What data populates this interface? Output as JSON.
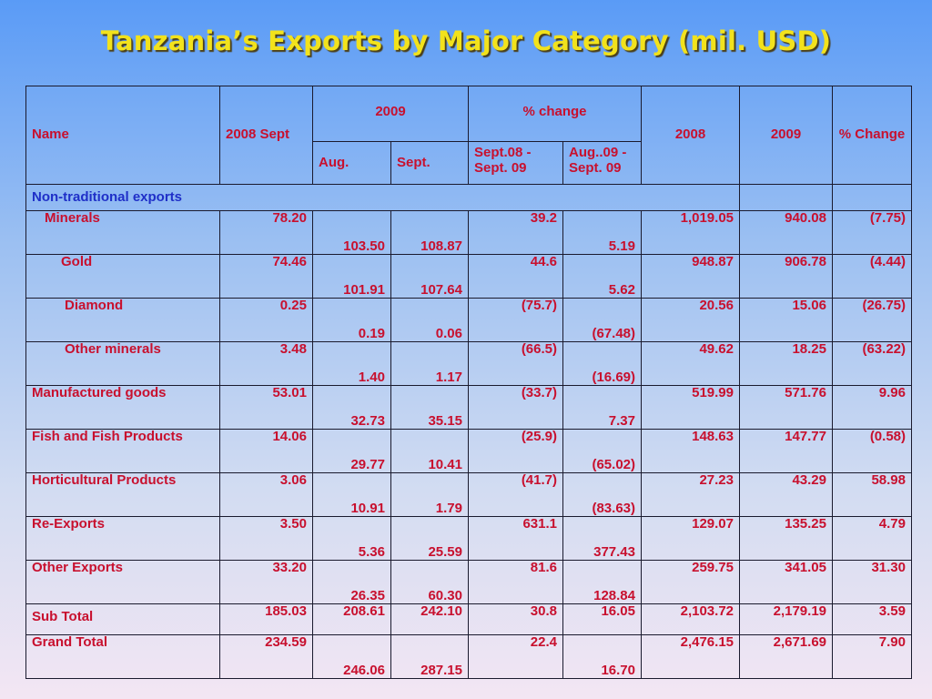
{
  "title": "Tanzania’s Exports by Major Category (mil. USD)",
  "headers": {
    "name": "Name",
    "sept_2008": "2008 Sept",
    "group_2009": "2009",
    "group_pct": "% change",
    "y2008": "2008",
    "y2009": "2009",
    "pct_change": "% Change",
    "aug": "Aug.",
    "sept": "Sept.",
    "sept08_sept09": "Sept.08 - Sept. 09",
    "aug09_sept09": "Aug..09 - Sept. 09"
  },
  "section_label": "Non-traditional exports",
  "rows": [
    {
      "name": "Minerals",
      "sept2008": "78.20",
      "aug2009": "103.50",
      "sept2009": "108.87",
      "chg_sept": "39.2",
      "chg_aug": "5.19",
      "y2008": "1,019.05",
      "y2009": "940.08",
      "pct": "(7.75)"
    },
    {
      "name": "Gold",
      "sept2008": "74.46",
      "aug2009": "101.91",
      "sept2009": "107.64",
      "chg_sept": "44.6",
      "chg_aug": "5.62",
      "y2008": "948.87",
      "y2009": "906.78",
      "pct": "(4.44)"
    },
    {
      "name": "Diamond",
      "sept2008": "0.25",
      "aug2009": "0.19",
      "sept2009": "0.06",
      "chg_sept": "(75.7)",
      "chg_aug": "(67.48)",
      "y2008": "20.56",
      "y2009": "15.06",
      "pct": "(26.75)"
    },
    {
      "name": "Other minerals",
      "sept2008": "3.48",
      "aug2009": "1.40",
      "sept2009": "1.17",
      "chg_sept": "(66.5)",
      "chg_aug": "(16.69)",
      "y2008": "49.62",
      "y2009": "18.25",
      "pct": "(63.22)"
    },
    {
      "name": "Manufactured goods",
      "sept2008": "53.01",
      "aug2009": "32.73",
      "sept2009": "35.15",
      "chg_sept": "(33.7)",
      "chg_aug": "7.37",
      "y2008": "519.99",
      "y2009": "571.76",
      "pct": "9.96"
    },
    {
      "name": "Fish and Fish Products",
      "sept2008": "14.06",
      "aug2009": "29.77",
      "sept2009": "10.41",
      "chg_sept": "(25.9)",
      "chg_aug": "(65.02)",
      "y2008": "148.63",
      "y2009": "147.77",
      "pct": "(0.58)"
    },
    {
      "name": "Horticultural Products",
      "sept2008": "3.06",
      "aug2009": "10.91",
      "sept2009": "1.79",
      "chg_sept": "(41.7)",
      "chg_aug": "(83.63)",
      "y2008": "27.23",
      "y2009": "43.29",
      "pct": "58.98"
    },
    {
      "name": "Re-Exports",
      "sept2008": "3.50",
      "aug2009": "5.36",
      "sept2009": "25.59",
      "chg_sept": "631.1",
      "chg_aug": "377.43",
      "y2008": "129.07",
      "y2009": "135.25",
      "pct": "4.79"
    },
    {
      "name": "Other Exports",
      "sept2008": "33.20",
      "aug2009": "26.35",
      "sept2009": "60.30",
      "chg_sept": "81.6",
      "chg_aug": "128.84",
      "y2008": "259.75",
      "y2009": "341.05",
      "pct": "31.30"
    },
    {
      "name": "Sub Total",
      "sept2008": "185.03",
      "aug2009": "208.61",
      "sept2009": "242.10",
      "chg_sept": "30.8",
      "chg_aug": "16.05",
      "y2008": "2,103.72",
      "y2009": "2,179.19",
      "pct": "3.59"
    },
    {
      "name": "Grand Total",
      "sept2008": "234.59",
      "aug2009": "246.06",
      "sept2009": "287.15",
      "chg_sept": "22.4",
      "chg_aug": "16.70",
      "y2008": "2,476.15",
      "y2009": "2,671.69",
      "pct": "7.90"
    }
  ],
  "colors": {
    "title": "#f2e21c",
    "text_red": "#c8102e",
    "text_blue": "#1f2fc8"
  }
}
